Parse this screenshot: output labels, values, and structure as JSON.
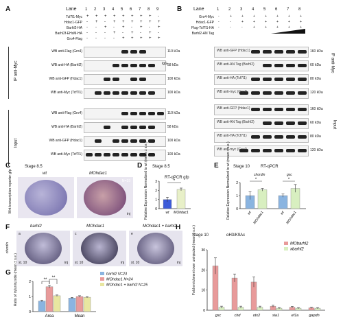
{
  "panelA": {
    "label": "A",
    "lane_word": "Lane",
    "lanes": [
      "1",
      "2",
      "3",
      "4",
      "5",
      "6",
      "7",
      "8",
      "9"
    ],
    "conditions": [
      "Tcf7l1-Myc",
      "Hdac1-GFP",
      "Barhl2-HA",
      "Barhl2f-EHsM-HA",
      "Gro4-Flag"
    ],
    "ip_label": "IP anti-Myc",
    "input_label": "Input",
    "ip_rows": [
      {
        "label": "WB anti-Flag (Gro4)",
        "kda": "110 kDa"
      },
      {
        "label": "WB anti-HA (Barhl2)",
        "kda": "58 kDa"
      },
      {
        "label": "WB anti-GFP (Hdac1)",
        "kda": "100 kDa"
      },
      {
        "label": "WB anti-Myc (Tcf7l1)",
        "kda": "100 kDa"
      }
    ],
    "igg": "IgG",
    "input_rows": [
      {
        "label": "WB anti-Flag (Gro4)",
        "kda": "110 kDa"
      },
      {
        "label": "WB anti-HA (Barhl2)",
        "kda": "58 kDa"
      },
      {
        "label": "WB anti-GFP (Hdac1)",
        "kda": "100 kDa"
      },
      {
        "label": "WB anti-Myc (Tcf7l1)",
        "kda": "100 kDa"
      }
    ]
  },
  "panelB": {
    "label": "B",
    "lane_word": "Lane",
    "lanes": [
      "1",
      "2",
      "3",
      "4",
      "5",
      "6",
      "7",
      "8"
    ],
    "conditions": [
      "Gro4-Myc",
      "Hdac1-GFP",
      "Flag-Tcf7l1-HA",
      "Barhl2-AN Tag"
    ],
    "ip_label": "IP anti-Myc",
    "input_label": "Input",
    "ip_rows": [
      {
        "label": "WB anti-GFP (Hdac1)",
        "kda": "160 kDa"
      },
      {
        "label": "WB anti-AN Tag (Barhl2)",
        "kda": "60 kDa"
      },
      {
        "label": "WB anti-HA (Tcf7l1)",
        "kda": "80 kDa"
      },
      {
        "label": "WB anti-myc (Gro4)",
        "kda": "120 kDa"
      }
    ],
    "input_rows": [
      {
        "label": "WB anti-GFP (Hdac1)",
        "kda": "160 kDa"
      },
      {
        "label": "WB anti-AN Tag (Barhl2)",
        "kda": "60 kDa"
      },
      {
        "label": "WB anti-HA (Tcf7l1)",
        "kda": "80 kDa"
      },
      {
        "label": "WB anti-myc (Gro4)",
        "kda": "120 kDa"
      }
    ]
  },
  "panelC": {
    "label": "C",
    "stage": "Stage 8.5",
    "ylabel": "Wnt transcription reporter gfp",
    "images": [
      {
        "title": "wt",
        "tag": ""
      },
      {
        "title": "MOhdac1",
        "tag": "inj",
        "n": "N=19"
      }
    ]
  },
  "panelD": {
    "label": "D",
    "stage": "Stage 8.5",
    "title": "RT-qPCR gfp",
    "ylabel": "Relative Expression Normalized to wt (mean ± s.e.)"
  },
  "panelE": {
    "label": "E",
    "stage": "Stage 10",
    "title": "RT-qPCR",
    "genes": [
      "chordin",
      "gsc"
    ],
    "ylabel": "Relative Expression Normalized to wt (mean ± s.e.)"
  },
  "panelF": {
    "label": "F",
    "ylabel": "chordin",
    "images": [
      {
        "title": "barhl2",
        "letter": "a",
        "stage": "st. 10",
        "tag": "inj"
      },
      {
        "title": "MOhdac1",
        "letter": "c",
        "stage": "st. 10",
        "tag": "inj"
      },
      {
        "title": "MOhdac1 + barhl2",
        "letter": "e",
        "stage": "st. 10",
        "tag": "inj"
      }
    ]
  },
  "panelG": {
    "label": "G",
    "ylabel": "Ratio of inj/uninj side (mean ± s.e.)"
  },
  "panelH": {
    "label": "H",
    "stage": "Stage 10",
    "title": "αH3/K9Ac",
    "ylabel": "Fold enrichment over uninjected (mean ± s.e.)"
  },
  "chart_data": [
    {
      "id": "D",
      "type": "bar",
      "categories": [
        "wt",
        "MOhdac1"
      ],
      "values": [
        1.0,
        2.1
      ],
      "errors": [
        0.25,
        0.15
      ],
      "colors": [
        "#3d5bd9",
        "#e8f0c8"
      ],
      "ylim": [
        0,
        3
      ],
      "yticks": [
        0,
        1,
        2,
        3
      ],
      "sig": "*"
    },
    {
      "id": "E",
      "type": "bar",
      "groups": [
        "chordin",
        "gsc"
      ],
      "categories": [
        "wt",
        "MOhdac1",
        "wt",
        "MOhdac1"
      ],
      "values": [
        1.0,
        1.45,
        1.0,
        1.55
      ],
      "errors": [
        0.3,
        0.1,
        0.12,
        0.3
      ],
      "colors": [
        "#8ab4e0",
        "#d8efc0",
        "#8ab4e0",
        "#d8efc0"
      ],
      "ylim": [
        0,
        2
      ],
      "yticks": [
        0,
        1,
        2
      ],
      "sig": [
        "*",
        "*"
      ]
    },
    {
      "id": "G",
      "type": "bar",
      "categories": [
        "Area",
        "Mean"
      ],
      "series": [
        {
          "name": "barhl2 N=23",
          "values": [
            0.7,
            0.9
          ],
          "errors": [
            0.06,
            0.04
          ],
          "color": "#8ab4e0"
        },
        {
          "name": "MOhdac1 N=24",
          "values": [
            1.65,
            1.0
          ],
          "errors": [
            0.1,
            0.05
          ],
          "color": "#e89a9a"
        },
        {
          "name": "MOhdac1 + barhl2 N=25",
          "values": [
            1.05,
            0.95
          ],
          "errors": [
            0.05,
            0.04
          ],
          "color": "#e8e6a0"
        }
      ],
      "ylim": [
        0,
        2
      ],
      "yticks": [
        0,
        1,
        2
      ],
      "sig": [
        "**",
        "**"
      ]
    },
    {
      "id": "H",
      "type": "bar",
      "categories": [
        "gsc",
        "chd",
        "otx2",
        "sia1",
        "ef1a",
        "gapdh"
      ],
      "series": [
        {
          "name": "MObarhl2",
          "values": [
            22,
            16,
            14,
            2,
            1.5,
            1.2
          ],
          "errors": [
            4,
            2,
            2.5,
            0.5,
            0.4,
            0.3
          ],
          "color": "#e89a9a"
        },
        {
          "name": "xbarhl2",
          "values": [
            1.5,
            1.5,
            1.5,
            1.0,
            1.0,
            1.0
          ],
          "errors": [
            0.5,
            0.5,
            0.5,
            0.3,
            0.3,
            0.3
          ],
          "color": "#d8efc0"
        }
      ],
      "ylim": [
        0,
        30
      ],
      "yticks": [
        0,
        10,
        20,
        30
      ]
    }
  ]
}
